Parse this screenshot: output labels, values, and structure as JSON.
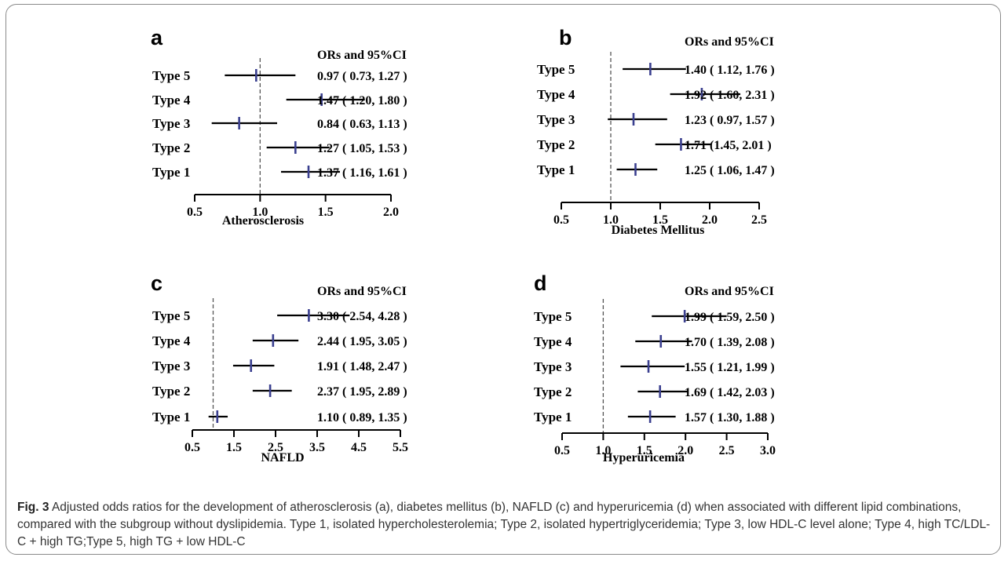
{
  "figure": {
    "caption": {
      "label": "Fig. 3",
      "text": "Adjusted odds ratios for the development of atherosclerosis (a), diabetes mellitus (b), NAFLD (c) and hyperuricemia (d) when associated with different lipid combinations, compared with the subgroup without dyslipidemia. Type 1, isolated hypercholesterolemia; Type 2, isolated hypertriglyceridemia; Type 3, low HDL-C level alone; Type 4, high TC/LDL-C + high TG;Type 5, high TG + low HDL-C"
    }
  },
  "chart_data": [
    {
      "type": "forest",
      "panel": "a",
      "xlabel": "Atherosclerosis",
      "ci_header": "ORs and 95%CI",
      "reference_line": 1.0,
      "xlim": [
        0.5,
        2.0
      ],
      "xticks": [
        "0.5",
        "1.0",
        "1.5",
        "2.0"
      ],
      "rows": [
        {
          "label": "Type 5",
          "or": 0.97,
          "lo": 0.73,
          "hi": 1.27,
          "text": "0.97 ( 0.73, 1.27 )"
        },
        {
          "label": "Type 4",
          "or": 1.47,
          "lo": 1.2,
          "hi": 1.8,
          "text": "1.47 ( 1.20, 1.80 )"
        },
        {
          "label": "Type 3",
          "or": 0.84,
          "lo": 0.63,
          "hi": 1.13,
          "text": "0.84 ( 0.63, 1.13 )"
        },
        {
          "label": "Type 2",
          "or": 1.27,
          "lo": 1.05,
          "hi": 1.53,
          "text": "1.27 ( 1.05, 1.53 )"
        },
        {
          "label": "Type 1",
          "or": 1.37,
          "lo": 1.16,
          "hi": 1.61,
          "text": "1.37 ( 1.16, 1.61 )"
        }
      ]
    },
    {
      "type": "forest",
      "panel": "b",
      "xlabel": "Diabetes Mellitus",
      "ci_header": "ORs and 95%CI",
      "reference_line": 1.0,
      "xlim": [
        0.5,
        2.5
      ],
      "xticks": [
        "0.5",
        "1.0",
        "1.5",
        "2.0",
        "2.5"
      ],
      "rows": [
        {
          "label": "Type 5",
          "or": 1.4,
          "lo": 1.12,
          "hi": 1.76,
          "text": "1.40 ( 1.12, 1.76 )"
        },
        {
          "label": "Type 4",
          "or": 1.92,
          "lo": 1.6,
          "hi": 2.31,
          "text": "1.92 ( 1.60, 2.31 )"
        },
        {
          "label": "Type 3",
          "or": 1.23,
          "lo": 0.97,
          "hi": 1.57,
          "text": "1.23 ( 0.97, 1.57 )"
        },
        {
          "label": "Type 2",
          "or": 1.71,
          "lo": 1.45,
          "hi": 2.01,
          "text": "1.71 (1.45, 2.01 )"
        },
        {
          "label": "Type 1",
          "or": 1.25,
          "lo": 1.06,
          "hi": 1.47,
          "text": "1.25 ( 1.06, 1.47 )"
        }
      ]
    },
    {
      "type": "forest",
      "panel": "c",
      "xlabel": "NAFLD",
      "ci_header": "ORs and 95%CI",
      "reference_line": 1.0,
      "xlim": [
        0.5,
        5.5
      ],
      "xticks": [
        "0.5",
        "1.5",
        "2.5",
        "3.5",
        "4.5",
        "5.5"
      ],
      "rows": [
        {
          "label": "Type 5",
          "or": 3.3,
          "lo": 2.54,
          "hi": 4.28,
          "text": "3.30 ( 2.54, 4.28 )"
        },
        {
          "label": "Type 4",
          "or": 2.44,
          "lo": 1.95,
          "hi": 3.05,
          "text": "2.44 ( 1.95, 3.05 )"
        },
        {
          "label": "Type 3",
          "or": 1.91,
          "lo": 1.48,
          "hi": 2.47,
          "text": "1.91 ( 1.48, 2.47 )"
        },
        {
          "label": "Type 2",
          "or": 2.37,
          "lo": 1.95,
          "hi": 2.89,
          "text": "2.37 ( 1.95, 2.89 )"
        },
        {
          "label": "Type 1",
          "or": 1.1,
          "lo": 0.89,
          "hi": 1.35,
          "text": "1.10 ( 0.89, 1.35 )"
        }
      ]
    },
    {
      "type": "forest",
      "panel": "d",
      "xlabel": "Hyperuricemia",
      "ci_header": "ORs and 95%CI",
      "reference_line": 1.0,
      "xlim": [
        0.5,
        3.0
      ],
      "xticks": [
        "0.5",
        "1.0",
        "1.5",
        "2.0",
        "2.5",
        "3.0"
      ],
      "rows": [
        {
          "label": "Type 5",
          "or": 1.99,
          "lo": 1.59,
          "hi": 2.5,
          "text": "1.99 ( 1.59, 2.50 )"
        },
        {
          "label": "Type 4",
          "or": 1.7,
          "lo": 1.39,
          "hi": 2.08,
          "text": "1.70 ( 1.39, 2.08 )"
        },
        {
          "label": "Type 3",
          "or": 1.55,
          "lo": 1.21,
          "hi": 1.99,
          "text": "1.55 ( 1.21, 1.99 )"
        },
        {
          "label": "Type 2",
          "or": 1.69,
          "lo": 1.42,
          "hi": 2.03,
          "text": "1.69 ( 1.42, 2.03 )"
        },
        {
          "label": "Type 1",
          "or": 1.57,
          "lo": 1.3,
          "hi": 1.88,
          "text": "1.57 ( 1.30, 1.88 )"
        }
      ]
    }
  ]
}
